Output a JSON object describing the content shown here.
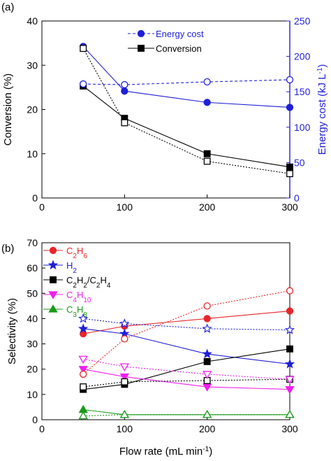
{
  "figure": {
    "x_label": "Flow rate (mL min",
    "x_label_sup": "-1",
    "x_label_end": ")"
  },
  "chart_data": [
    {
      "panel": "(a)",
      "type": "line",
      "x": [
        50,
        100,
        200,
        300
      ],
      "xlim": [
        0,
        300
      ],
      "xticks": [
        0,
        100,
        200,
        300
      ],
      "ylabel_left": "Conversion (%)",
      "ylim_left": [
        0,
        40
      ],
      "yticks_left": [
        0,
        10,
        20,
        30,
        40
      ],
      "ylabel_right": "Energy cost (kJ L",
      "ylabel_right_sup": "-1",
      "ylabel_right_end": ")",
      "ylim_right": [
        0,
        250
      ],
      "yticks_right": [
        0,
        50,
        100,
        150,
        200,
        250
      ],
      "legend_position": "top-right",
      "right_axis_color": "#1f1fd8",
      "series": [
        {
          "name": "Energy cost",
          "axis": "right",
          "color": "#1f1fd8",
          "marker": "circle",
          "filled": true,
          "dash": "solid",
          "values": [
            214,
            151,
            135,
            128
          ]
        },
        {
          "name": "Conversion",
          "axis": "left",
          "color": "#000000",
          "marker": "square",
          "filled": true,
          "dash": "solid",
          "values": [
            25.3,
            18,
            10,
            7
          ]
        },
        {
          "axis": "right",
          "color": "#1f1fd8",
          "marker": "circle",
          "filled": false,
          "dash": "dashed",
          "values": [
            161,
            160,
            164,
            167
          ]
        },
        {
          "axis": "left",
          "color": "#000000",
          "marker": "square",
          "filled": false,
          "dash": "dotted",
          "values": [
            33.8,
            17,
            8.3,
            5.5
          ]
        }
      ]
    },
    {
      "panel": "(b)",
      "type": "line",
      "x": [
        50,
        100,
        200,
        300
      ],
      "xlim": [
        0,
        300
      ],
      "xticks": [
        0,
        100,
        200,
        300
      ],
      "ylabel": "Selectivity (%)",
      "ylim": [
        0,
        70
      ],
      "yticks": [
        0,
        10,
        20,
        30,
        40,
        50,
        60,
        70
      ],
      "legend_position": "top-left",
      "series": [
        {
          "name": "C2H6",
          "label_parts": [
            [
              "C",
              ""
            ],
            [
              "2",
              "sub"
            ],
            [
              "H",
              ""
            ],
            [
              "6",
              "sub"
            ]
          ],
          "color": "#e8262a",
          "marker": "circle",
          "filled": true,
          "dash": "solid",
          "values": [
            34,
            37,
            40,
            43
          ]
        },
        {
          "name": "H2",
          "label_parts": [
            [
              "H",
              ""
            ],
            [
              "2",
              "sub"
            ]
          ],
          "color": "#1f1fd8",
          "marker": "star",
          "filled": true,
          "dash": "solid",
          "values": [
            36,
            34,
            26,
            22
          ]
        },
        {
          "name": "C2H2/C2H4",
          "label_parts": [
            [
              "C",
              ""
            ],
            [
              "2",
              "sub"
            ],
            [
              "H",
              ""
            ],
            [
              "2",
              "sub"
            ],
            [
              "/C",
              ""
            ],
            [
              "2",
              "sub"
            ],
            [
              "H",
              ""
            ],
            [
              "4",
              "sub"
            ]
          ],
          "color": "#000000",
          "marker": "square",
          "filled": true,
          "dash": "solid",
          "values": [
            12,
            14,
            23,
            28
          ]
        },
        {
          "name": "C4H10",
          "label_parts": [
            [
              "C",
              ""
            ],
            [
              "4",
              "sub"
            ],
            [
              "H",
              ""
            ],
            [
              "10",
              "sub"
            ]
          ],
          "color": "#f01ef0",
          "marker": "triangle-down",
          "filled": true,
          "dash": "solid",
          "values": [
            20,
            17,
            13,
            12
          ]
        },
        {
          "name": "C3H8",
          "label_parts": [
            [
              "C",
              ""
            ],
            [
              "3",
              "sub"
            ],
            [
              "H",
              ""
            ],
            [
              "8",
              "sub"
            ]
          ],
          "color": "#1a9a1a",
          "marker": "triangle-up",
          "filled": true,
          "dash": "solid",
          "values": [
            4,
            2,
            2,
            2
          ]
        },
        {
          "color": "#e8262a",
          "marker": "circle",
          "filled": false,
          "dash": "dotted",
          "values": [
            18,
            32,
            45,
            51
          ]
        },
        {
          "color": "#1f1fd8",
          "marker": "star",
          "filled": false,
          "dash": "dotted",
          "values": [
            40,
            38,
            36,
            35.5
          ]
        },
        {
          "color": "#000000",
          "marker": "square",
          "filled": false,
          "dash": "dotted",
          "values": [
            13,
            15,
            15.5,
            16
          ]
        },
        {
          "color": "#f01ef0",
          "marker": "triangle-down",
          "filled": false,
          "dash": "dotted",
          "values": [
            24,
            21,
            18,
            16
          ]
        },
        {
          "color": "#1a9a1a",
          "marker": "triangle-up",
          "filled": false,
          "dash": "dotted",
          "values": [
            1.5,
            2,
            2,
            2
          ]
        }
      ]
    }
  ]
}
